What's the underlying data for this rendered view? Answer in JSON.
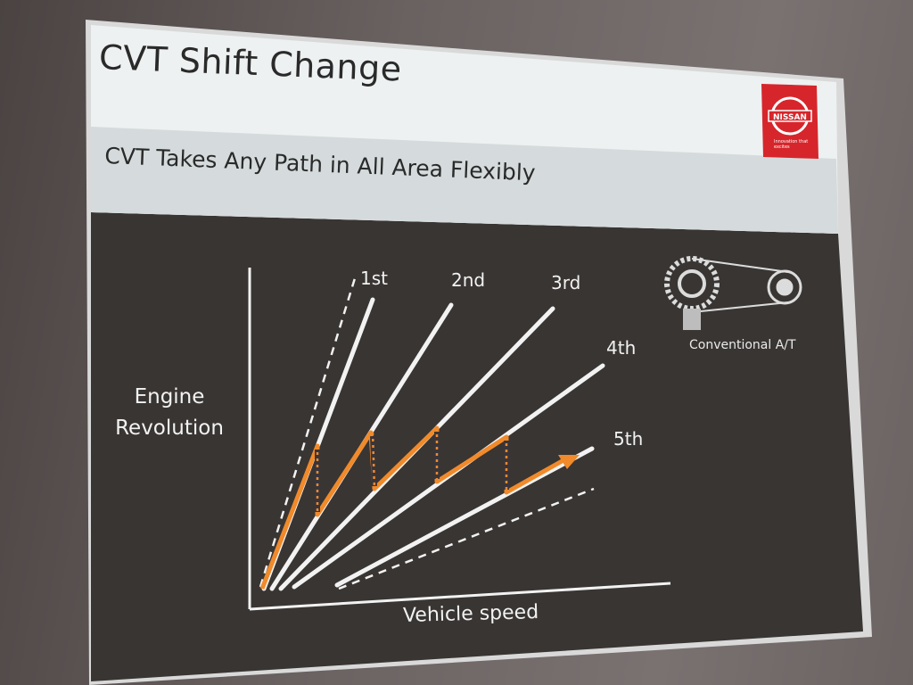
{
  "slide": {
    "title": "CVT Shift Change",
    "subtitle": "CVT Takes Any Path in All Area Flexibly",
    "logo": {
      "brand": "NISSAN",
      "tagline": "Innovation that excites",
      "color": "#d6262b"
    },
    "colors": {
      "header_background": "#eef1f1",
      "chart_background": "#3a3634",
      "cvt_path": "#f08a2a",
      "gear_line": "#f2f2f2"
    }
  },
  "chart_data": {
    "type": "line",
    "xlabel": "Vehicle speed",
    "ylabel": "Engine Revolution",
    "gears": [
      "1st",
      "2nd",
      "3rd",
      "4th",
      "5th"
    ],
    "inset_label": "Conventional A/T",
    "inset_icon": "pulley-belt-icon",
    "annotations": [
      "dashed lower ratio bound",
      "dashed upper ratio bound",
      "orange CVT shift path with arrow"
    ]
  }
}
